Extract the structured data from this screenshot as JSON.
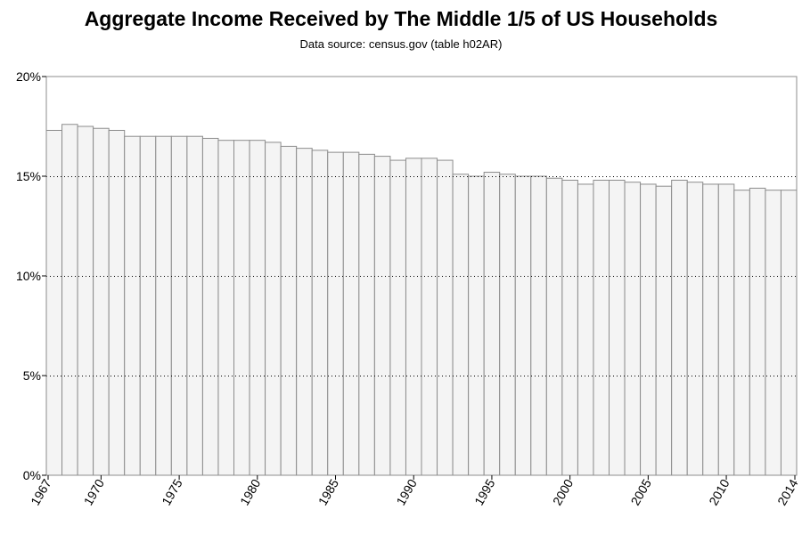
{
  "title": "Aggregate Income Received by The Middle 1/5 of US Households",
  "subtitle": "Data source: census.gov (table h02AR)",
  "chart_data": {
    "type": "bar",
    "title": "Aggregate Income Received by The Middle 1/5 of US Households",
    "subtitle": "Data source: census.gov (table h02AR)",
    "xlabel": "",
    "ylabel": "",
    "ylim": [
      0,
      20
    ],
    "yticks": [
      "0%",
      "5%",
      "10%",
      "15%",
      "20%"
    ],
    "ytick_values": [
      0,
      5,
      10,
      15,
      20
    ],
    "xtick_labels": [
      "1967",
      "1970",
      "1975",
      "1980",
      "1985",
      "1990",
      "1995",
      "2000",
      "2005",
      "2010",
      "2014"
    ],
    "grid": "horizontal dotted",
    "bar_color": "#f4f4f4",
    "bar_outline": "#8c8c8c",
    "categories": [
      "1967",
      "1968",
      "1969",
      "1970",
      "1971",
      "1972",
      "1973",
      "1974",
      "1975",
      "1976",
      "1977",
      "1978",
      "1979",
      "1980",
      "1981",
      "1982",
      "1983",
      "1984",
      "1985",
      "1986",
      "1987",
      "1988",
      "1989",
      "1990",
      "1991",
      "1992",
      "1993",
      "1994",
      "1995",
      "1996",
      "1997",
      "1998",
      "1999",
      "2000",
      "2001",
      "2002",
      "2003",
      "2004",
      "2005",
      "2006",
      "2007",
      "2008",
      "2009",
      "2010",
      "2011",
      "2012",
      "2013",
      "2014"
    ],
    "values": [
      17.3,
      17.6,
      17.5,
      17.4,
      17.3,
      17.0,
      17.0,
      17.0,
      17.0,
      17.0,
      16.9,
      16.8,
      16.8,
      16.8,
      16.7,
      16.5,
      16.4,
      16.3,
      16.2,
      16.2,
      16.1,
      16.0,
      15.8,
      15.9,
      15.9,
      15.8,
      15.1,
      15.0,
      15.2,
      15.1,
      15.0,
      15.0,
      14.9,
      14.8,
      14.6,
      14.8,
      14.8,
      14.7,
      14.6,
      14.5,
      14.8,
      14.7,
      14.6,
      14.6,
      14.3,
      14.4,
      14.3,
      14.3
    ]
  }
}
